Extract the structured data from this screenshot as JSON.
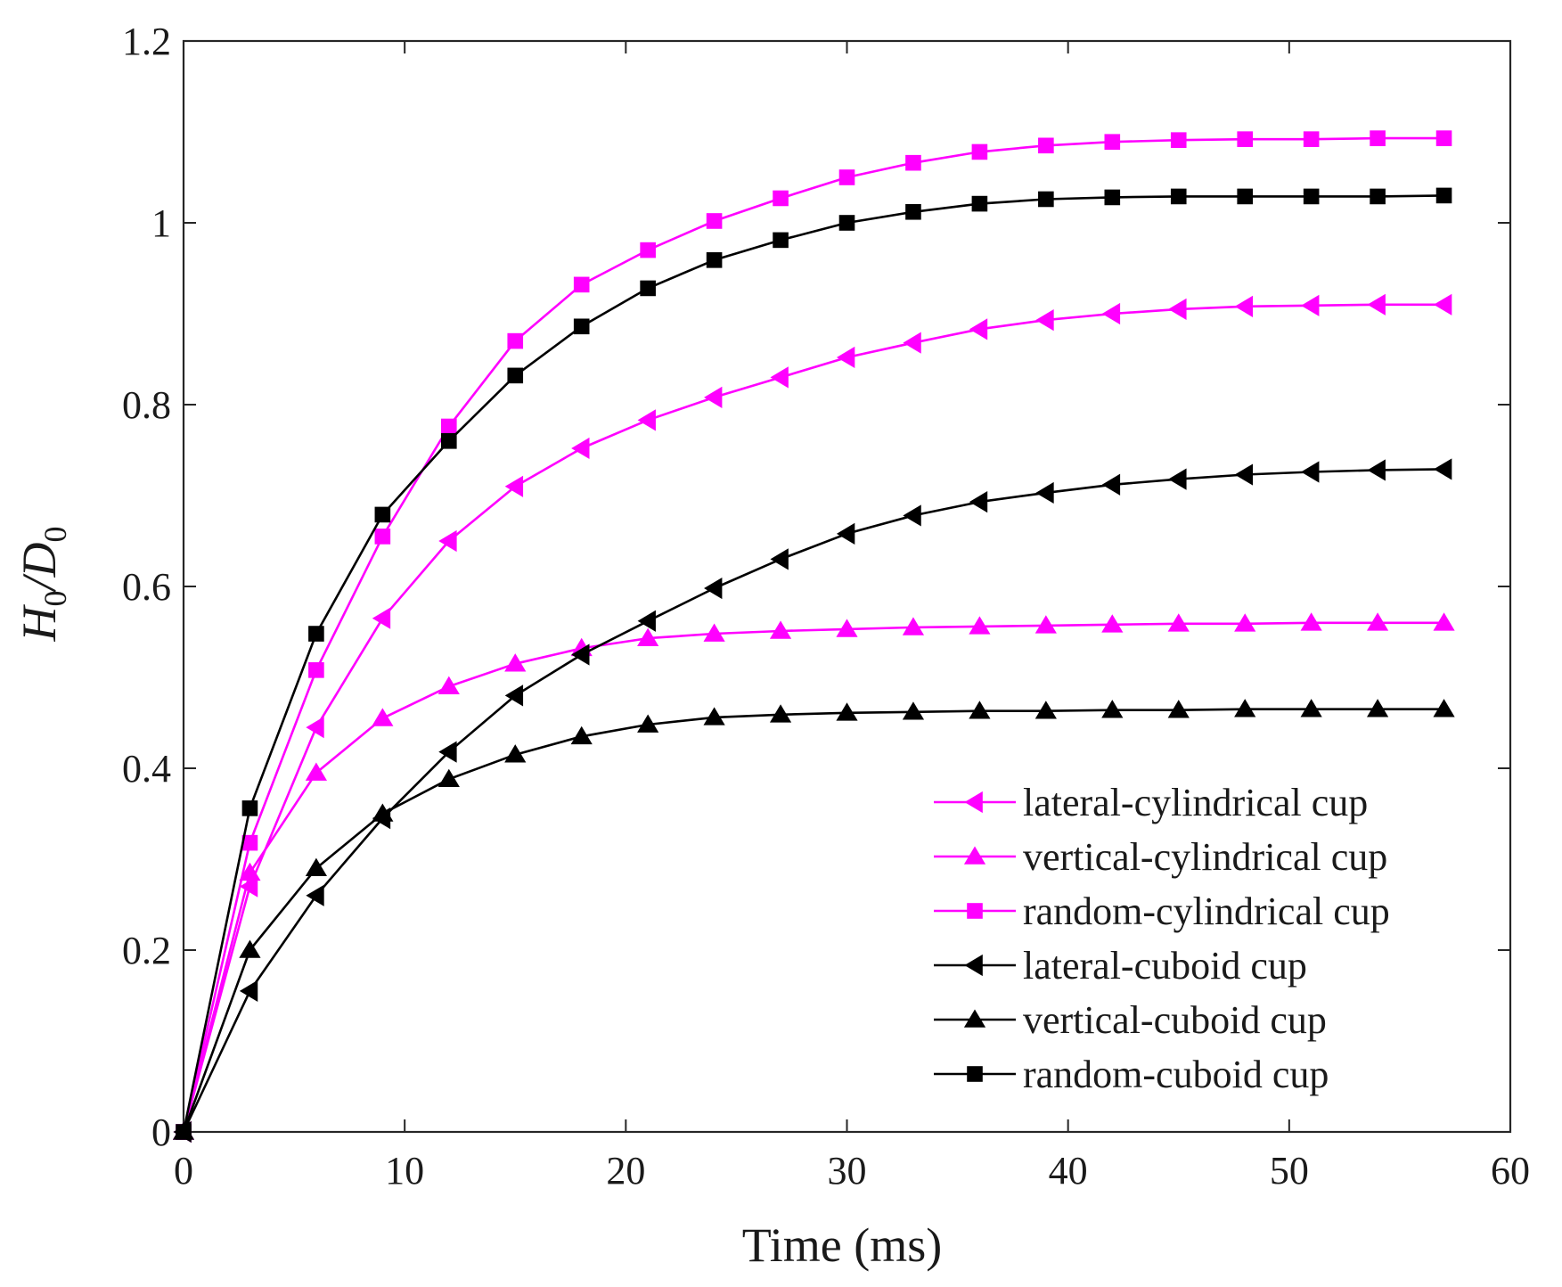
{
  "chart_data": {
    "type": "line",
    "title": "",
    "xlabel": "Time (ms)",
    "ylabel_main": "H",
    "ylabel_sub1": "0",
    "ylabel_slash": "/D",
    "ylabel_sub2": "0",
    "xlim": [
      0,
      60
    ],
    "ylim": [
      0,
      1.2
    ],
    "xticks": [
      0,
      10,
      20,
      30,
      40,
      50,
      60
    ],
    "xtick_labels": [
      "0",
      "10",
      "20",
      "30",
      "40",
      "50",
      "60"
    ],
    "yticks": [
      0,
      0.2,
      0.4,
      0.6,
      0.8,
      1.0,
      1.2
    ],
    "ytick_labels": [
      "0",
      "0.2",
      "0.4",
      "0.6",
      "0.8",
      "1",
      "1.2"
    ],
    "grid": false,
    "legend_position": "bottom-right",
    "x": [
      0,
      3,
      6,
      9,
      12,
      15,
      18,
      21,
      24,
      27,
      30,
      33,
      36,
      39,
      42,
      45,
      48,
      51,
      54,
      57
    ],
    "series": [
      {
        "name": "lateral-cylindrical cup",
        "color": "#ff00ff",
        "marker": "triangle-left",
        "values": [
          0,
          0.27,
          0.445,
          0.565,
          0.65,
          0.71,
          0.752,
          0.783,
          0.808,
          0.83,
          0.852,
          0.868,
          0.883,
          0.893,
          0.9,
          0.905,
          0.908,
          0.909,
          0.91,
          0.91
        ]
      },
      {
        "name": "vertical-cylindrical cup",
        "color": "#ff00ff",
        "marker": "triangle-up",
        "values": [
          0,
          0.285,
          0.395,
          0.455,
          0.49,
          0.515,
          0.532,
          0.543,
          0.548,
          0.551,
          0.553,
          0.555,
          0.556,
          0.557,
          0.558,
          0.559,
          0.559,
          0.56,
          0.56,
          0.56
        ]
      },
      {
        "name": "random-cylindrical cup",
        "color": "#ff00ff",
        "marker": "square",
        "values": [
          0,
          0.318,
          0.508,
          0.655,
          0.776,
          0.87,
          0.932,
          0.97,
          1.002,
          1.027,
          1.05,
          1.066,
          1.078,
          1.085,
          1.089,
          1.091,
          1.092,
          1.092,
          1.093,
          1.093
        ]
      },
      {
        "name": "lateral-cuboid cup",
        "color": "#000000",
        "marker": "triangle-left",
        "values": [
          0,
          0.155,
          0.26,
          0.345,
          0.418,
          0.48,
          0.525,
          0.562,
          0.598,
          0.63,
          0.658,
          0.678,
          0.693,
          0.703,
          0.712,
          0.718,
          0.723,
          0.726,
          0.728,
          0.729
        ]
      },
      {
        "name": "vertical-cuboid cup",
        "color": "#000000",
        "marker": "triangle-up",
        "values": [
          0,
          0.2,
          0.29,
          0.35,
          0.388,
          0.415,
          0.435,
          0.448,
          0.456,
          0.459,
          0.461,
          0.462,
          0.463,
          0.463,
          0.464,
          0.464,
          0.465,
          0.465,
          0.465,
          0.465
        ]
      },
      {
        "name": "random-cuboid cup",
        "color": "#000000",
        "marker": "square",
        "values": [
          0,
          0.356,
          0.548,
          0.679,
          0.76,
          0.832,
          0.886,
          0.928,
          0.959,
          0.981,
          1.0,
          1.012,
          1.021,
          1.026,
          1.028,
          1.029,
          1.029,
          1.029,
          1.029,
          1.03
        ]
      }
    ]
  }
}
